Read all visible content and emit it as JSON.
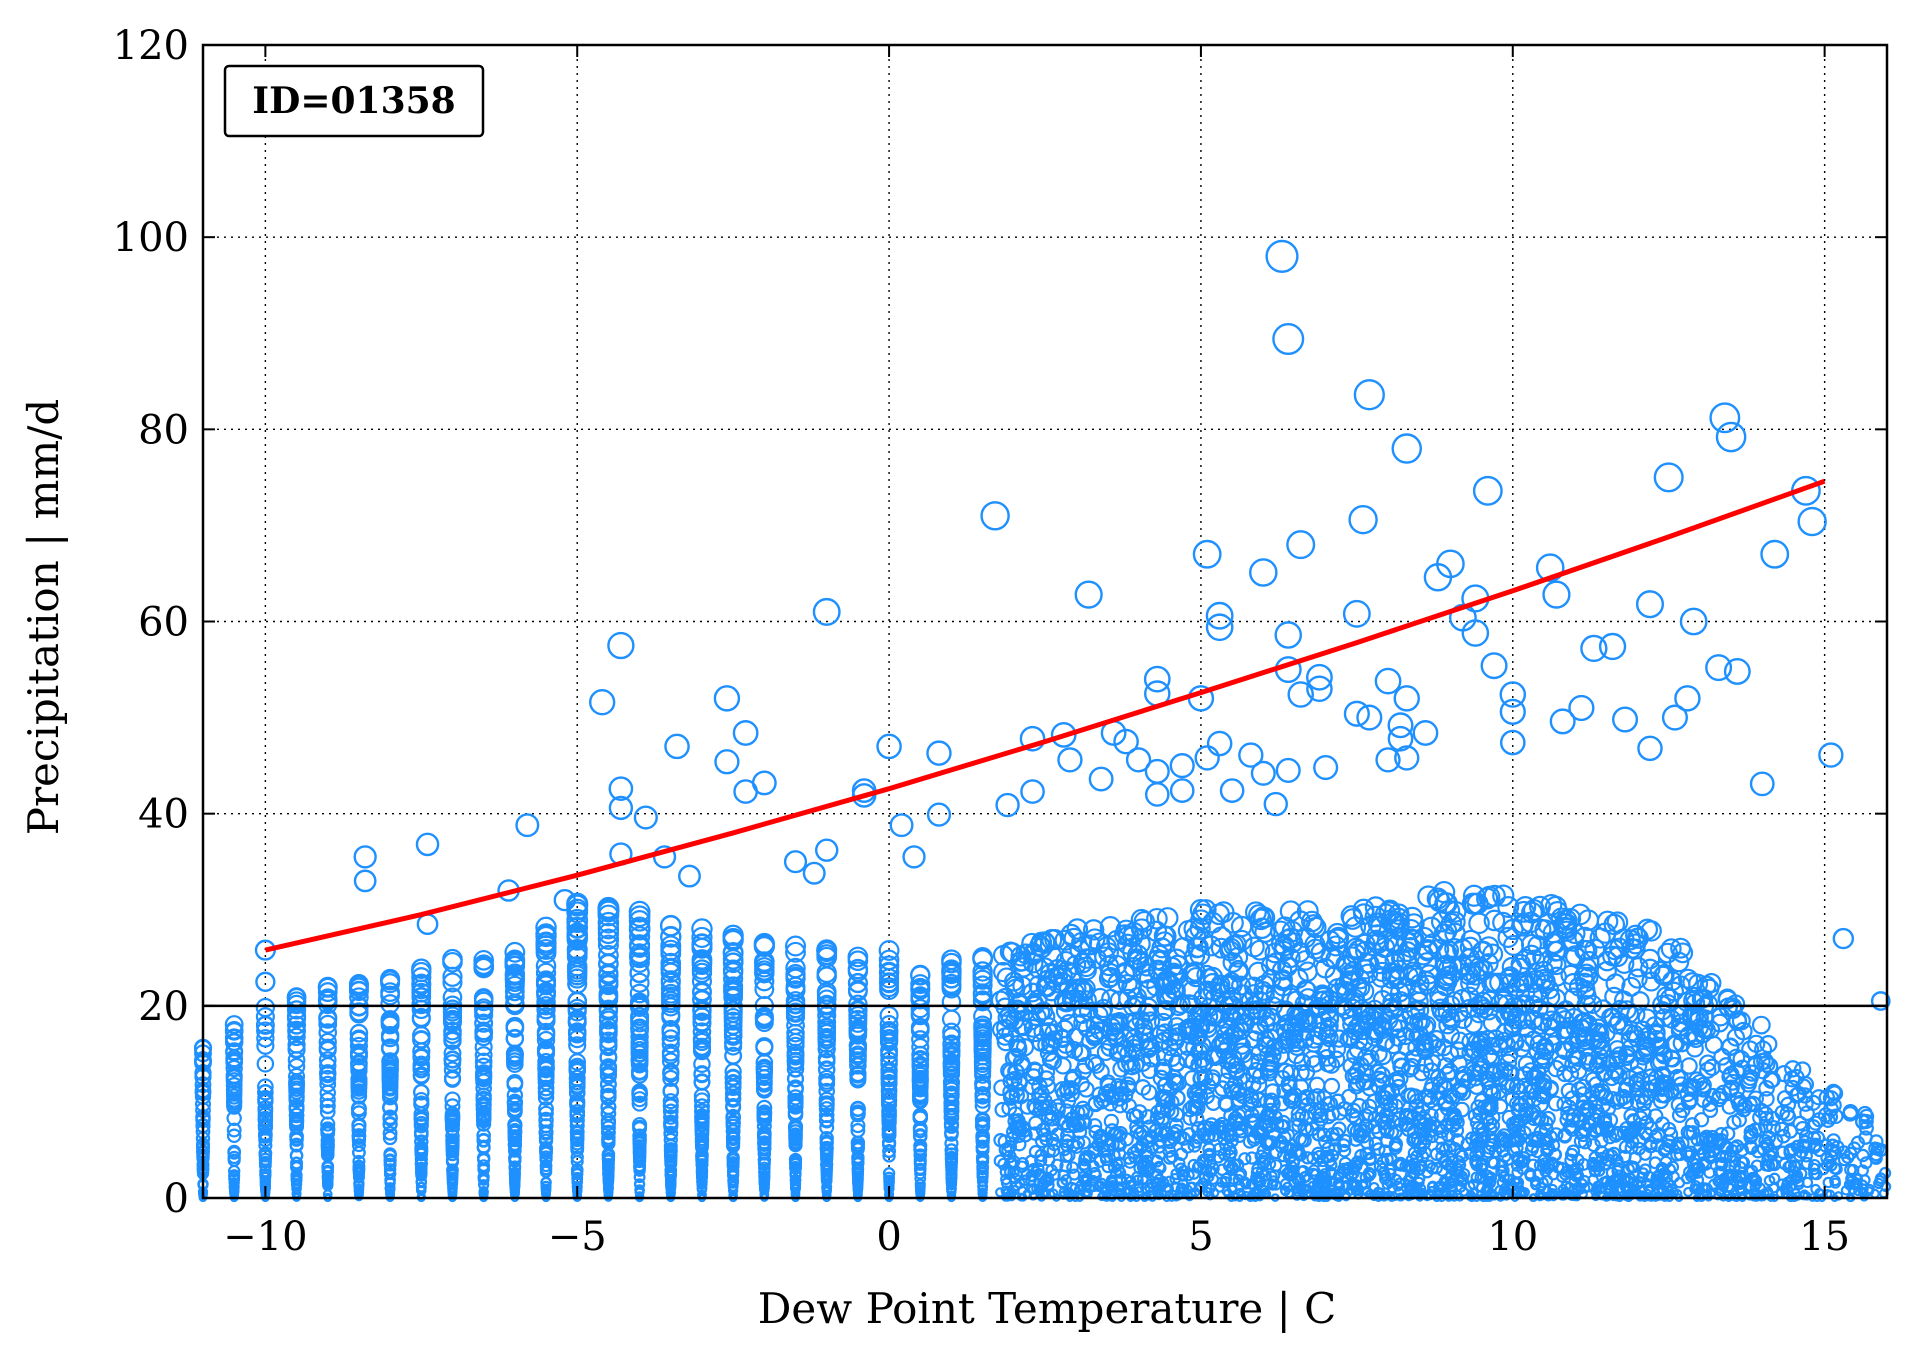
{
  "chart_data": {
    "type": "scatter",
    "title": "",
    "xlabel": "Dew Point Temperature | C",
    "ylabel": "Precipitation | mm/d",
    "xlim": [
      -11,
      16
    ],
    "ylim": [
      0,
      120
    ],
    "xticks": [
      -10,
      -5,
      0,
      5,
      10,
      15
    ],
    "yticks": [
      0,
      20,
      40,
      60,
      80,
      100,
      120
    ],
    "xtick_labels": [
      "−10",
      "−5",
      "0",
      "5",
      "10",
      "15"
    ],
    "ytick_labels": [
      "0",
      "20",
      "40",
      "60",
      "80",
      "100",
      "120"
    ],
    "grid": true,
    "annotation": "ID=01358",
    "threshold_line": {
      "y": 20,
      "color": "#000000"
    },
    "fit_curve": {
      "color": "#ff0000",
      "x": [
        -10,
        -7.5,
        -5,
        -2.5,
        0,
        2.5,
        5,
        7.5,
        10,
        12.5,
        15
      ],
      "y": [
        25.8,
        29.5,
        33.6,
        38.0,
        42.6,
        47.5,
        52.6,
        57.8,
        63.2,
        68.8,
        74.6
      ]
    },
    "marker_color": "#1e90ff",
    "marker_style": "hollow-circle",
    "bulk_distribution": {
      "x_step": 0.5,
      "note_levels": [
        {
          "x": -11,
          "ymax": 17
        },
        {
          "x": -10,
          "ymax": 20
        },
        {
          "x": -9,
          "ymax": 22
        },
        {
          "x": -8,
          "ymax": 23
        },
        {
          "x": -7,
          "ymax": 25
        },
        {
          "x": -6,
          "ymax": 26
        },
        {
          "x": -5,
          "ymax": 31
        },
        {
          "x": -4,
          "ymax": 30
        },
        {
          "x": -3,
          "ymax": 28
        },
        {
          "x": -2,
          "ymax": 27
        },
        {
          "x": -1,
          "ymax": 26
        },
        {
          "x": 0,
          "ymax": 26
        },
        {
          "x": 1,
          "ymax": 26
        },
        {
          "x": 2,
          "ymax": 26
        },
        {
          "x": 3,
          "ymax": 28
        },
        {
          "x": 4,
          "ymax": 29
        },
        {
          "x": 5,
          "ymax": 30
        },
        {
          "x": 6,
          "ymax": 30
        },
        {
          "x": 7,
          "ymax": 30
        },
        {
          "x": 8,
          "ymax": 31
        },
        {
          "x": 9,
          "ymax": 32
        },
        {
          "x": 10,
          "ymax": 32
        },
        {
          "x": 11,
          "ymax": 30
        },
        {
          "x": 12,
          "ymax": 28
        },
        {
          "x": 13,
          "ymax": 24
        },
        {
          "x": 14,
          "ymax": 18
        },
        {
          "x": 15,
          "ymax": 12
        },
        {
          "x": 16,
          "ymax": 6
        }
      ]
    },
    "outliers": [
      {
        "x": -10,
        "y": 25.8
      },
      {
        "x": -10,
        "y": 22.5
      },
      {
        "x": -8.4,
        "y": 35.5
      },
      {
        "x": -8.4,
        "y": 33.0
      },
      {
        "x": -7.4,
        "y": 36.8
      },
      {
        "x": -7.4,
        "y": 28.5
      },
      {
        "x": -6.1,
        "y": 32.0
      },
      {
        "x": -5.8,
        "y": 38.8
      },
      {
        "x": -5.2,
        "y": 31.0
      },
      {
        "x": -4.6,
        "y": 51.6
      },
      {
        "x": -4.3,
        "y": 57.5
      },
      {
        "x": -4.3,
        "y": 42.6
      },
      {
        "x": -4.3,
        "y": 40.6
      },
      {
        "x": -4.3,
        "y": 35.8
      },
      {
        "x": -3.9,
        "y": 39.6
      },
      {
        "x": -3.6,
        "y": 35.5
      },
      {
        "x": -3.4,
        "y": 47.0
      },
      {
        "x": -3.2,
        "y": 33.5
      },
      {
        "x": -2.6,
        "y": 52.0
      },
      {
        "x": -2.6,
        "y": 45.4
      },
      {
        "x": -2.3,
        "y": 48.4
      },
      {
        "x": -2.3,
        "y": 42.3
      },
      {
        "x": -2.0,
        "y": 43.2
      },
      {
        "x": -1.5,
        "y": 35.0
      },
      {
        "x": -1.2,
        "y": 33.8
      },
      {
        "x": -1.0,
        "y": 61.0
      },
      {
        "x": -1.0,
        "y": 36.2
      },
      {
        "x": -0.4,
        "y": 42.4
      },
      {
        "x": -0.4,
        "y": 41.9
      },
      {
        "x": 0.0,
        "y": 47.0
      },
      {
        "x": 0.2,
        "y": 38.8
      },
      {
        "x": 0.4,
        "y": 35.5
      },
      {
        "x": 0.8,
        "y": 46.3
      },
      {
        "x": 0.8,
        "y": 39.9
      },
      {
        "x": 1.7,
        "y": 71.0
      },
      {
        "x": 1.9,
        "y": 40.9
      },
      {
        "x": 2.3,
        "y": 47.8
      },
      {
        "x": 2.3,
        "y": 42.3
      },
      {
        "x": 2.8,
        "y": 48.2
      },
      {
        "x": 2.9,
        "y": 45.6
      },
      {
        "x": 3.2,
        "y": 62.8
      },
      {
        "x": 3.4,
        "y": 43.6
      },
      {
        "x": 3.6,
        "y": 48.4
      },
      {
        "x": 3.8,
        "y": 47.5
      },
      {
        "x": 4.0,
        "y": 45.6
      },
      {
        "x": 4.3,
        "y": 54.0
      },
      {
        "x": 4.3,
        "y": 52.5
      },
      {
        "x": 4.3,
        "y": 44.4
      },
      {
        "x": 4.3,
        "y": 42.0
      },
      {
        "x": 4.7,
        "y": 45.0
      },
      {
        "x": 4.7,
        "y": 42.4
      },
      {
        "x": 5.0,
        "y": 52.0
      },
      {
        "x": 5.1,
        "y": 67.0
      },
      {
        "x": 5.1,
        "y": 45.8
      },
      {
        "x": 5.3,
        "y": 60.6
      },
      {
        "x": 5.3,
        "y": 59.4
      },
      {
        "x": 5.3,
        "y": 47.3
      },
      {
        "x": 5.5,
        "y": 42.4
      },
      {
        "x": 5.8,
        "y": 46.1
      },
      {
        "x": 6.0,
        "y": 65.1
      },
      {
        "x": 6.0,
        "y": 44.2
      },
      {
        "x": 6.2,
        "y": 41.0
      },
      {
        "x": 6.3,
        "y": 98.0
      },
      {
        "x": 6.4,
        "y": 89.4
      },
      {
        "x": 6.4,
        "y": 58.6
      },
      {
        "x": 6.4,
        "y": 55.0
      },
      {
        "x": 6.4,
        "y": 44.5
      },
      {
        "x": 6.6,
        "y": 68.0
      },
      {
        "x": 6.6,
        "y": 52.4
      },
      {
        "x": 6.9,
        "y": 54.2
      },
      {
        "x": 6.9,
        "y": 53.0
      },
      {
        "x": 7.0,
        "y": 44.8
      },
      {
        "x": 7.5,
        "y": 60.8
      },
      {
        "x": 7.5,
        "y": 50.4
      },
      {
        "x": 7.6,
        "y": 70.6
      },
      {
        "x": 7.7,
        "y": 83.6
      },
      {
        "x": 7.7,
        "y": 50.0
      },
      {
        "x": 8.0,
        "y": 53.8
      },
      {
        "x": 8.0,
        "y": 45.6
      },
      {
        "x": 8.2,
        "y": 49.2
      },
      {
        "x": 8.2,
        "y": 47.8
      },
      {
        "x": 8.3,
        "y": 78.0
      },
      {
        "x": 8.3,
        "y": 52.0
      },
      {
        "x": 8.3,
        "y": 45.8
      },
      {
        "x": 8.6,
        "y": 48.4
      },
      {
        "x": 8.8,
        "y": 64.6
      },
      {
        "x": 9.0,
        "y": 66.0
      },
      {
        "x": 9.2,
        "y": 60.4
      },
      {
        "x": 9.4,
        "y": 62.4
      },
      {
        "x": 9.4,
        "y": 58.8
      },
      {
        "x": 9.6,
        "y": 73.6
      },
      {
        "x": 9.7,
        "y": 55.4
      },
      {
        "x": 10.0,
        "y": 52.4
      },
      {
        "x": 10.0,
        "y": 50.6
      },
      {
        "x": 10.0,
        "y": 47.4
      },
      {
        "x": 10.6,
        "y": 65.6
      },
      {
        "x": 10.7,
        "y": 62.8
      },
      {
        "x": 10.8,
        "y": 49.6
      },
      {
        "x": 11.1,
        "y": 51.0
      },
      {
        "x": 11.3,
        "y": 57.2
      },
      {
        "x": 11.6,
        "y": 57.4
      },
      {
        "x": 11.8,
        "y": 49.8
      },
      {
        "x": 12.2,
        "y": 61.8
      },
      {
        "x": 12.2,
        "y": 46.8
      },
      {
        "x": 12.5,
        "y": 75.0
      },
      {
        "x": 12.6,
        "y": 50.0
      },
      {
        "x": 12.8,
        "y": 52.0
      },
      {
        "x": 12.9,
        "y": 60.0
      },
      {
        "x": 13.3,
        "y": 55.2
      },
      {
        "x": 13.4,
        "y": 81.2
      },
      {
        "x": 13.5,
        "y": 79.2
      },
      {
        "x": 13.6,
        "y": 54.8
      },
      {
        "x": 14.0,
        "y": 43.1
      },
      {
        "x": 14.2,
        "y": 67.0
      },
      {
        "x": 14.7,
        "y": 73.6
      },
      {
        "x": 14.8,
        "y": 70.4
      },
      {
        "x": 15.1,
        "y": 46.1
      },
      {
        "x": 15.3,
        "y": 27.0
      },
      {
        "x": 15.9,
        "y": 20.5
      }
    ]
  }
}
